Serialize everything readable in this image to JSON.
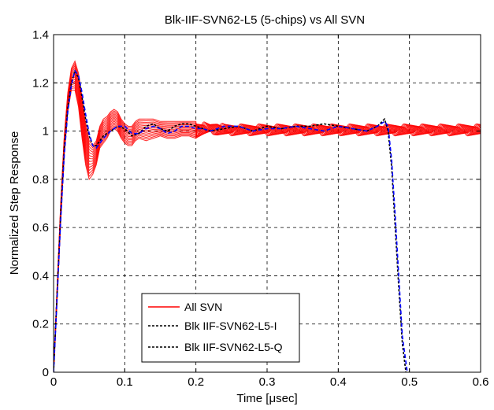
{
  "chart_data": {
    "type": "line",
    "title": "Blk-IIF-SVN62-L5 (5-chips) vs All SVN",
    "xlabel": "Time [μsec]",
    "ylabel": "Normalized Step Response",
    "xlim": [
      0,
      0.6
    ],
    "ylim": [
      0,
      1.4
    ],
    "xticks": [
      0,
      0.1,
      0.2,
      0.3,
      0.4,
      0.5,
      0.6
    ],
    "xtick_labels": [
      "0",
      "0.1",
      "0.2",
      "0.3",
      "0.4",
      "0.5",
      "0.6"
    ],
    "yticks": [
      0,
      0.2,
      0.4,
      0.6,
      0.8,
      1,
      1.2,
      1.4
    ],
    "ytick_labels": [
      "0",
      "0.2",
      "0.4",
      "0.6",
      "0.8",
      "1",
      "1.2",
      "1.4"
    ],
    "grid": true,
    "legend_position": "bottom-center",
    "series": [
      {
        "name": "All SVN",
        "color": "#ff0000",
        "style": "solid",
        "band": {
          "x": [
            0,
            0.005,
            0.01,
            0.015,
            0.02,
            0.025,
            0.03,
            0.035,
            0.04,
            0.045,
            0.05,
            0.055,
            0.06,
            0.065,
            0.07,
            0.075,
            0.08,
            0.085,
            0.09,
            0.095,
            0.1,
            0.105,
            0.11,
            0.115,
            0.12,
            0.13,
            0.14,
            0.15,
            0.16,
            0.17,
            0.18,
            0.19,
            0.2,
            0.21,
            0.22,
            0.23,
            0.24,
            0.25,
            0.26,
            0.27,
            0.28,
            0.29,
            0.3,
            0.32,
            0.34,
            0.36,
            0.38,
            0.4,
            0.42,
            0.44,
            0.46,
            0.48,
            0.5,
            0.52,
            0.54,
            0.56,
            0.58,
            0.6
          ],
          "lower": [
            0,
            0.3,
            0.62,
            0.9,
            1.08,
            1.17,
            1.17,
            1.1,
            0.97,
            0.86,
            0.8,
            0.82,
            0.86,
            0.93,
            0.95,
            0.97,
            1.0,
            1.01,
            1.0,
            0.97,
            0.95,
            0.94,
            0.94,
            0.96,
            0.97,
            0.96,
            0.97,
            0.98,
            0.97,
            0.97,
            0.98,
            0.98,
            0.97,
            0.98,
            0.99,
            0.98,
            0.98,
            0.98,
            0.98,
            0.98,
            0.98,
            0.98,
            0.98,
            0.98,
            0.98,
            0.98,
            0.98,
            0.98,
            0.98,
            0.98,
            0.98,
            0.98,
            0.98,
            0.98,
            0.98,
            0.98,
            0.98,
            0.98
          ],
          "upper": [
            0,
            0.36,
            0.7,
            0.98,
            1.16,
            1.26,
            1.29,
            1.24,
            1.14,
            1.03,
            0.96,
            0.94,
            0.96,
            1.02,
            1.05,
            1.06,
            1.08,
            1.09,
            1.08,
            1.05,
            1.03,
            1.02,
            1.02,
            1.04,
            1.05,
            1.05,
            1.05,
            1.04,
            1.04,
            1.04,
            1.04,
            1.04,
            1.04,
            1.04,
            1.03,
            1.04,
            1.03,
            1.03,
            1.03,
            1.03,
            1.03,
            1.03,
            1.03,
            1.03,
            1.03,
            1.03,
            1.03,
            1.03,
            1.03,
            1.03,
            1.03,
            1.03,
            1.03,
            1.03,
            1.03,
            1.03,
            1.03,
            1.03
          ]
        }
      },
      {
        "name": "Blk IIF-SVN62-L5-I",
        "color": "#000000",
        "style": "dashed",
        "x": [
          0,
          0.005,
          0.01,
          0.015,
          0.02,
          0.025,
          0.03,
          0.035,
          0.04,
          0.045,
          0.05,
          0.055,
          0.06,
          0.065,
          0.07,
          0.08,
          0.09,
          0.1,
          0.11,
          0.12,
          0.13,
          0.14,
          0.15,
          0.16,
          0.17,
          0.18,
          0.19,
          0.2,
          0.21,
          0.22,
          0.24,
          0.26,
          0.28,
          0.3,
          0.32,
          0.34,
          0.36,
          0.38,
          0.4,
          0.42,
          0.44,
          0.455,
          0.465,
          0.47,
          0.475,
          0.48,
          0.485,
          0.49,
          0.495
        ],
        "y": [
          0,
          0.33,
          0.66,
          0.93,
          1.1,
          1.2,
          1.25,
          1.22,
          1.14,
          1.05,
          0.98,
          0.94,
          0.94,
          0.96,
          0.98,
          1.0,
          1.02,
          1.01,
          0.98,
          0.99,
          1.02,
          1.03,
          1.01,
          1.0,
          1.02,
          1.03,
          1.03,
          1.02,
          1.01,
          1.0,
          1.01,
          1.02,
          1.0,
          1.02,
          1.01,
          1.02,
          1.02,
          1.03,
          1.02,
          1.01,
          1.0,
          1.02,
          1.05,
          1.0,
          0.85,
          0.6,
          0.35,
          0.12,
          0.0
        ]
      },
      {
        "name": "Blk IIF-SVN62-L5-Q",
        "color": "#0000ff",
        "style": "dashed",
        "x": [
          0,
          0.005,
          0.01,
          0.015,
          0.02,
          0.025,
          0.03,
          0.035,
          0.04,
          0.045,
          0.05,
          0.055,
          0.06,
          0.065,
          0.07,
          0.08,
          0.09,
          0.1,
          0.11,
          0.12,
          0.13,
          0.14,
          0.15,
          0.16,
          0.17,
          0.18,
          0.19,
          0.2,
          0.21,
          0.22,
          0.24,
          0.26,
          0.28,
          0.3,
          0.32,
          0.34,
          0.36,
          0.38,
          0.4,
          0.42,
          0.44,
          0.455,
          0.465,
          0.47,
          0.475,
          0.48,
          0.485,
          0.49,
          0.497
        ],
        "y": [
          0,
          0.31,
          0.63,
          0.9,
          1.08,
          1.19,
          1.25,
          1.23,
          1.16,
          1.07,
          0.99,
          0.94,
          0.93,
          0.95,
          0.97,
          1.0,
          1.02,
          1.02,
          0.99,
          0.99,
          1.01,
          1.02,
          1.01,
          0.99,
          1.0,
          1.02,
          1.02,
          1.01,
          1.01,
          1.0,
          1.02,
          1.02,
          1.0,
          1.01,
          1.01,
          1.02,
          1.01,
          1.0,
          1.02,
          1.01,
          1.0,
          1.02,
          1.04,
          1.02,
          0.88,
          0.65,
          0.4,
          0.15,
          0.0
        ]
      }
    ]
  }
}
